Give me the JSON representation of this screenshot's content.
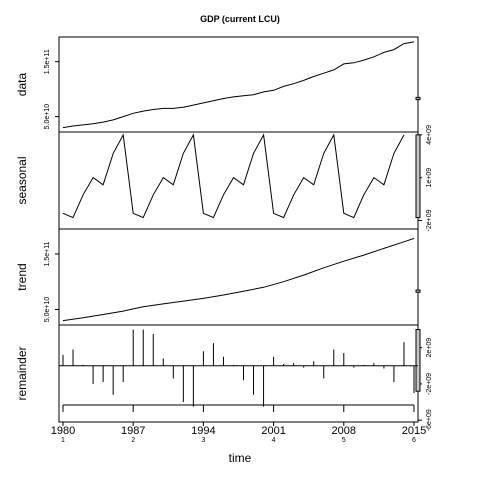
{
  "chart_data": {
    "type": "line",
    "title": "GDP (current LCU)",
    "xlabel": "time",
    "x_ticks": [
      {
        "value": 1980,
        "label": "1980",
        "sub": "1"
      },
      {
        "value": 1987,
        "label": "1987",
        "sub": "2"
      },
      {
        "value": 1994,
        "label": "1994",
        "sub": "3"
      },
      {
        "value": 2001,
        "label": "2001",
        "sub": "4"
      },
      {
        "value": 2008,
        "label": "2008",
        "sub": "5"
      },
      {
        "value": 2015,
        "label": "2015",
        "sub": "6"
      }
    ],
    "xlim": [
      1979.6,
      2015.4
    ],
    "panels": [
      {
        "name": "data",
        "ylabel": "data",
        "axis_side": "left",
        "ylim": [
          22000000000,
          195000000000
        ],
        "ticks": [
          {
            "value": 50000000000,
            "label": "5.0e+10"
          },
          {
            "value": 150000000000,
            "label": "1.5e+11"
          }
        ],
        "range_bar": [
          81000000000,
          85000000000
        ],
        "type": "line",
        "values": [
          [
            1980,
            30
          ],
          [
            1981,
            33
          ],
          [
            1982,
            35
          ],
          [
            1983,
            37
          ],
          [
            1984,
            40
          ],
          [
            1985,
            44
          ],
          [
            1986,
            50
          ],
          [
            1987,
            56
          ],
          [
            1988,
            60
          ],
          [
            1989,
            63
          ],
          [
            1990,
            65
          ],
          [
            1991,
            65
          ],
          [
            1992,
            67
          ],
          [
            1993,
            71
          ],
          [
            1994,
            75
          ],
          [
            1995,
            79
          ],
          [
            1996,
            83
          ],
          [
            1997,
            86
          ],
          [
            1998,
            88
          ],
          [
            1999,
            90
          ],
          [
            2000,
            95
          ],
          [
            2001,
            98
          ],
          [
            2002,
            105
          ],
          [
            2003,
            110
          ],
          [
            2004,
            116
          ],
          [
            2005,
            123
          ],
          [
            2006,
            129
          ],
          [
            2007,
            135
          ],
          [
            2008,
            146
          ],
          [
            2009,
            148
          ],
          [
            2010,
            153
          ],
          [
            2011,
            159
          ],
          [
            2012,
            167
          ],
          [
            2013,
            172
          ],
          [
            2014,
            183
          ],
          [
            2015,
            186
          ]
        ]
      },
      {
        "name": "seasonal",
        "ylabel": "seasonal",
        "axis_side": "right",
        "ylim": [
          -2600000000,
          4200000000
        ],
        "ticks": [
          {
            "value": 4000000000,
            "label": "4e+09"
          },
          {
            "value": 1000000000,
            "label": "1e+09"
          },
          {
            "value": -2000000000,
            "label": "-2e+09"
          }
        ],
        "range_bar": [
          -1800000000,
          4000000000
        ],
        "type": "line",
        "values": [
          [
            1980,
            -1.5
          ],
          [
            1981,
            -1.8
          ],
          [
            1982,
            -0.2
          ],
          [
            1983,
            1.0
          ],
          [
            1984,
            0.5
          ],
          [
            1985,
            2.7
          ],
          [
            1986,
            4.0
          ],
          [
            1987,
            -1.5
          ],
          [
            1988,
            -1.8
          ],
          [
            1989,
            -0.2
          ],
          [
            1990,
            1.0
          ],
          [
            1991,
            0.5
          ],
          [
            1992,
            2.7
          ],
          [
            1993,
            4.0
          ],
          [
            1994,
            -1.5
          ],
          [
            1995,
            -1.8
          ],
          [
            1996,
            -0.2
          ],
          [
            1997,
            1.0
          ],
          [
            1998,
            0.5
          ],
          [
            1999,
            2.7
          ],
          [
            2000,
            4.0
          ],
          [
            2001,
            -1.5
          ],
          [
            2002,
            -1.8
          ],
          [
            2003,
            -0.2
          ],
          [
            2004,
            1.0
          ],
          [
            2005,
            0.5
          ],
          [
            2006,
            2.7
          ],
          [
            2007,
            4.0
          ],
          [
            2008,
            -1.5
          ],
          [
            2009,
            -1.8
          ],
          [
            2010,
            -0.2
          ],
          [
            2011,
            1.0
          ],
          [
            2012,
            0.5
          ],
          [
            2013,
            2.7
          ],
          [
            2014,
            4.0
          ]
        ]
      },
      {
        "name": "trend",
        "ylabel": "trend",
        "axis_side": "left",
        "ylim": [
          22000000000,
          195000000000
        ],
        "ticks": [
          {
            "value": 50000000000,
            "label": "5.0e+10"
          },
          {
            "value": 150000000000,
            "label": "1.5e+11"
          }
        ],
        "range_bar": [
          81000000000,
          85000000000
        ],
        "type": "line",
        "values": [
          [
            1980,
            30
          ],
          [
            1982,
            35
          ],
          [
            1984,
            41
          ],
          [
            1986,
            47
          ],
          [
            1988,
            55
          ],
          [
            1990,
            60
          ],
          [
            1992,
            65
          ],
          [
            1994,
            70
          ],
          [
            1996,
            76
          ],
          [
            1998,
            83
          ],
          [
            2000,
            90
          ],
          [
            2002,
            100
          ],
          [
            2004,
            112
          ],
          [
            2006,
            125
          ],
          [
            2008,
            137
          ],
          [
            2010,
            148
          ],
          [
            2012,
            160
          ],
          [
            2014,
            172
          ],
          [
            2015,
            178
          ]
        ]
      },
      {
        "name": "remainder",
        "ylabel": "remainder",
        "axis_side": "right",
        "ylim": [
          -6200000000,
          4500000000
        ],
        "ticks": [
          {
            "value": 2000000000,
            "label": "2e+09"
          },
          {
            "value": -2000000000,
            "label": "-2e+09"
          },
          {
            "value": -6000000000,
            "label": "-6e+09"
          }
        ],
        "range_bar": [
          -2800000000,
          4000000000
        ],
        "baseline": 0,
        "type": "bar",
        "values": [
          [
            1980,
            1.2
          ],
          [
            1981,
            1.8
          ],
          [
            1982,
            0.1
          ],
          [
            1983,
            -2.0
          ],
          [
            1984,
            -1.8
          ],
          [
            1985,
            -3.2
          ],
          [
            1986,
            -1.8
          ],
          [
            1987,
            4.0
          ],
          [
            1988,
            4.0
          ],
          [
            1989,
            3.5
          ],
          [
            1990,
            0.8
          ],
          [
            1991,
            -1.4
          ],
          [
            1992,
            -4.0
          ],
          [
            1993,
            -4.5
          ],
          [
            1994,
            1.6
          ],
          [
            1995,
            2.5
          ],
          [
            1996,
            1.0
          ],
          [
            1997,
            0.1
          ],
          [
            1998,
            -1.6
          ],
          [
            1999,
            -3.2
          ],
          [
            2000,
            -4.5
          ],
          [
            2001,
            1.0
          ],
          [
            2002,
            0.2
          ],
          [
            2003,
            0.3
          ],
          [
            2004,
            -0.2
          ],
          [
            2005,
            0.5
          ],
          [
            2006,
            -1.4
          ],
          [
            2007,
            1.8
          ],
          [
            2008,
            1.4
          ],
          [
            2009,
            -0.2
          ],
          [
            2010,
            0.1
          ],
          [
            2011,
            0.3
          ],
          [
            2012,
            -0.3
          ],
          [
            2013,
            -1.8
          ],
          [
            2014,
            2.6
          ],
          [
            2015,
            -3.0
          ]
        ]
      }
    ]
  }
}
